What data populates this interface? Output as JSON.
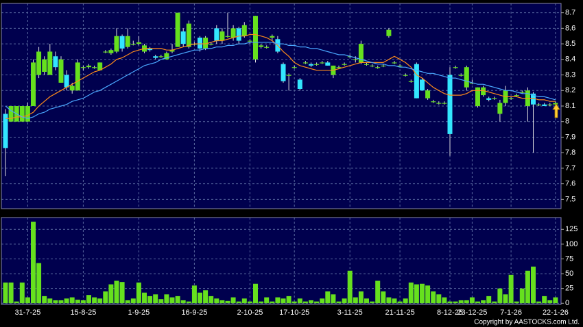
{
  "chart_data": {
    "type": "candlestick",
    "categories": [
      null,
      null,
      null,
      null,
      "31-7-25",
      null,
      null,
      null,
      null,
      null,
      null,
      null,
      null,
      null,
      "15-8-25",
      null,
      null,
      null,
      null,
      null,
      null,
      null,
      null,
      null,
      "1-9-25",
      null,
      null,
      null,
      null,
      null,
      null,
      null,
      null,
      null,
      "16-9-25",
      null,
      null,
      null,
      null,
      null,
      null,
      null,
      null,
      null,
      "2-10-25",
      null,
      null,
      null,
      null,
      null,
      null,
      null,
      "17-10-25",
      null,
      null,
      null,
      null,
      null,
      null,
      null,
      null,
      null,
      "3-11-25",
      null,
      null,
      null,
      null,
      null,
      null,
      null,
      null,
      "21-11-25",
      null,
      null,
      null,
      null,
      null,
      null,
      null,
      null,
      "8-12-25",
      null,
      null,
      null,
      "23-12-25",
      null,
      null,
      null,
      null,
      null,
      null,
      "7-1-26",
      null,
      null,
      null,
      null,
      null,
      null,
      null,
      "22-1-26"
    ],
    "open": [
      8.05,
      8.0,
      8.0,
      8.0,
      8.0,
      8.1,
      8.3,
      8.32,
      8.3,
      8.42,
      8.25,
      8.3,
      8.2,
      8.2,
      8.35,
      8.35,
      8.35,
      8.33,
      8.45,
      8.44,
      8.45,
      8.55,
      8.48,
      8.5,
      8.5,
      8.45,
      8.47,
      8.42,
      8.42,
      8.4,
      8.45,
      8.48,
      8.58,
      8.48,
      8.5,
      8.54,
      8.47,
      8.5,
      8.6,
      8.52,
      8.55,
      8.54,
      8.6,
      8.55,
      8.52,
      8.4,
      8.48,
      8.48,
      8.54,
      8.53,
      8.37,
      8.3,
      8.35,
      8.27,
      8.38,
      8.37,
      8.37,
      8.38,
      8.38,
      8.3,
      8.35,
      8.37,
      8.42,
      8.4,
      8.38,
      8.37,
      8.36,
      8.35,
      8.36,
      8.55,
      8.38,
      8.36,
      8.3,
      8.26,
      8.37,
      8.27,
      8.15,
      8.13,
      8.12,
      8.12,
      8.3,
      8.35,
      8.3,
      8.22,
      8.25,
      8.1,
      8.17,
      8.15,
      8.15,
      8.05,
      8.12,
      8.15,
      8.17,
      8.19,
      8.1,
      8.18,
      8.11,
      8.11,
      8.11,
      8.11
    ],
    "high": [
      8.08,
      8.1,
      8.1,
      8.1,
      8.12,
      8.4,
      8.48,
      8.42,
      8.5,
      8.45,
      8.42,
      8.33,
      8.25,
      8.4,
      8.36,
      8.37,
      8.36,
      8.38,
      8.46,
      8.47,
      8.6,
      8.56,
      8.6,
      8.52,
      8.55,
      8.5,
      8.48,
      8.43,
      8.43,
      8.45,
      8.5,
      8.7,
      8.6,
      8.65,
      8.51,
      8.55,
      8.55,
      8.51,
      8.62,
      8.6,
      8.7,
      8.62,
      8.61,
      8.64,
      8.53,
      8.68,
      8.5,
      8.49,
      8.56,
      8.55,
      8.38,
      8.31,
      8.36,
      8.28,
      8.39,
      8.38,
      8.38,
      8.39,
      8.39,
      8.36,
      8.36,
      8.38,
      8.43,
      8.42,
      8.52,
      8.38,
      8.37,
      8.36,
      8.37,
      8.6,
      8.39,
      8.37,
      8.31,
      8.27,
      8.38,
      8.28,
      8.21,
      8.14,
      8.13,
      8.13,
      8.35,
      8.36,
      8.31,
      8.36,
      8.27,
      8.22,
      8.23,
      8.16,
      8.16,
      8.14,
      8.23,
      8.16,
      8.18,
      8.2,
      8.22,
      8.19,
      8.12,
      8.12,
      8.12,
      8.13
    ],
    "low": [
      7.65,
      8.0,
      8.0,
      8.0,
      8.0,
      8.1,
      8.28,
      8.3,
      8.3,
      8.33,
      8.25,
      8.2,
      8.18,
      8.2,
      8.33,
      8.34,
      8.34,
      8.33,
      8.44,
      8.43,
      8.44,
      8.45,
      8.47,
      8.49,
      8.49,
      8.44,
      8.45,
      8.4,
      8.41,
      8.4,
      8.44,
      8.48,
      8.48,
      8.47,
      8.49,
      8.45,
      8.46,
      8.49,
      8.5,
      8.5,
      8.54,
      8.52,
      8.5,
      8.54,
      8.5,
      8.38,
      8.47,
      8.47,
      8.52,
      8.44,
      8.25,
      8.2,
      8.34,
      8.2,
      8.37,
      8.35,
      8.36,
      8.37,
      8.36,
      8.28,
      8.34,
      8.36,
      8.41,
      8.38,
      8.37,
      8.36,
      8.35,
      8.34,
      8.35,
      8.54,
      8.37,
      8.35,
      8.29,
      8.25,
      8.15,
      8.2,
      8.14,
      8.12,
      8.11,
      8.11,
      7.78,
      8.34,
      8.29,
      8.2,
      8.24,
      8.09,
      8.16,
      8.13,
      8.14,
      8.0,
      8.1,
      8.14,
      8.16,
      8.18,
      8.0,
      7.8,
      8.1,
      8.1,
      8.1,
      8.1
    ],
    "close": [
      7.83,
      8.1,
      8.1,
      8.1,
      8.1,
      8.38,
      8.45,
      8.4,
      8.45,
      8.35,
      8.4,
      8.22,
      8.23,
      8.38,
      8.35,
      8.36,
      8.35,
      8.38,
      8.45,
      8.46,
      8.55,
      8.47,
      8.55,
      8.5,
      8.51,
      8.49,
      8.46,
      8.41,
      8.42,
      8.44,
      8.46,
      8.7,
      8.5,
      8.63,
      8.5,
      8.47,
      8.54,
      8.5,
      8.52,
      8.58,
      8.55,
      8.6,
      8.52,
      8.62,
      8.52,
      8.68,
      8.49,
      8.48,
      8.55,
      8.45,
      8.26,
      8.3,
      8.35,
      8.21,
      8.38,
      8.36,
      8.37,
      8.38,
      8.36,
      8.36,
      8.35,
      8.37,
      8.42,
      8.4,
      8.5,
      8.37,
      8.36,
      8.35,
      8.36,
      8.59,
      8.38,
      8.36,
      8.3,
      8.26,
      8.15,
      8.2,
      8.2,
      8.13,
      8.12,
      8.12,
      7.92,
      8.35,
      8.3,
      8.35,
      8.25,
      8.22,
      8.22,
      8.14,
      8.15,
      8.12,
      8.2,
      8.15,
      8.17,
      8.19,
      8.2,
      8.11,
      8.11,
      8.1,
      8.11,
      8.12
    ],
    "up_color": "#66e01e",
    "down_color": "#33e6ff",
    "series": [
      {
        "color": "#ff8c1a",
        "values": [
          8.02,
          8.02,
          8.03,
          8.03,
          8.04,
          8.06,
          8.1,
          8.13,
          8.16,
          8.18,
          8.2,
          8.22,
          8.24,
          8.26,
          8.28,
          8.3,
          8.32,
          8.33,
          8.35,
          8.37,
          8.4,
          8.41,
          8.43,
          8.45,
          8.46,
          8.47,
          8.47,
          8.47,
          8.47,
          8.46,
          8.46,
          8.47,
          8.48,
          8.49,
          8.5,
          8.5,
          8.5,
          8.51,
          8.52,
          8.52,
          8.53,
          8.54,
          8.55,
          8.55,
          8.56,
          8.56,
          8.55,
          8.54,
          8.52,
          8.49,
          8.45,
          8.42,
          8.38,
          8.36,
          8.35,
          8.34,
          8.33,
          8.33,
          8.33,
          8.33,
          8.34,
          8.35,
          8.36,
          8.37,
          8.38,
          8.38,
          8.38,
          8.38,
          8.38,
          8.4,
          8.42,
          8.4,
          8.38,
          8.35,
          8.3,
          8.28,
          8.25,
          8.22,
          8.2,
          8.18,
          8.17,
          8.17,
          8.17,
          8.18,
          8.2,
          8.2,
          8.2,
          8.19,
          8.18,
          8.17,
          8.16,
          8.16,
          8.16,
          8.15,
          8.15,
          8.15,
          8.14,
          8.14,
          8.13,
          8.13
        ]
      },
      {
        "color": "#4aa8ff",
        "values": [
          8.1,
          8.07,
          8.05,
          8.03,
          8.02,
          8.03,
          8.05,
          8.06,
          8.08,
          8.09,
          8.1,
          8.11,
          8.13,
          8.14,
          8.15,
          8.17,
          8.19,
          8.2,
          8.22,
          8.24,
          8.26,
          8.28,
          8.3,
          8.32,
          8.34,
          8.36,
          8.37,
          8.38,
          8.4,
          8.41,
          8.42,
          8.43,
          8.44,
          8.45,
          8.46,
          8.46,
          8.47,
          8.47,
          8.48,
          8.48,
          8.49,
          8.49,
          8.5,
          8.5,
          8.51,
          8.51,
          8.51,
          8.51,
          8.51,
          8.5,
          8.5,
          8.49,
          8.49,
          8.48,
          8.48,
          8.47,
          8.47,
          8.46,
          8.45,
          8.44,
          8.43,
          8.43,
          8.42,
          8.41,
          8.4,
          8.39,
          8.38,
          8.37,
          8.37,
          8.36,
          8.36,
          8.35,
          8.35,
          8.34,
          8.33,
          8.32,
          8.31,
          8.31,
          8.3,
          8.29,
          8.28,
          8.28,
          8.27,
          8.26,
          8.25,
          8.24,
          8.24,
          8.23,
          8.22,
          8.21,
          8.2,
          8.2,
          8.19,
          8.18,
          8.18,
          8.17,
          8.16,
          8.16,
          8.15,
          8.14
        ]
      }
    ],
    "ylim": [
      7.44,
      8.76
    ],
    "yticks": [
      7.5,
      7.6,
      7.7,
      7.8,
      7.9,
      8,
      8.1,
      8.2,
      8.3,
      8.4,
      8.5,
      8.6,
      8.7
    ],
    "grid": true,
    "volume": {
      "color": "#66e01e",
      "values": [
        35,
        35,
        3,
        35,
        10,
        138,
        68,
        12,
        8,
        5,
        5,
        8,
        10,
        6,
        5,
        14,
        10,
        8,
        20,
        32,
        38,
        36,
        5,
        8,
        35,
        18,
        12,
        15,
        7,
        15,
        10,
        12,
        5,
        3,
        30,
        18,
        22,
        12,
        8,
        5,
        4,
        10,
        3,
        8,
        3,
        33,
        3,
        10,
        3,
        10,
        8,
        12,
        3,
        8,
        3,
        5,
        3,
        8,
        20,
        15,
        3,
        8,
        55,
        10,
        20,
        8,
        3,
        38,
        20,
        10,
        8,
        3,
        8,
        35,
        32,
        33,
        30,
        20,
        15,
        10,
        3,
        3,
        5,
        5,
        10,
        3,
        5,
        12,
        3,
        25,
        15,
        48,
        3,
        25,
        55,
        62,
        3,
        12,
        5,
        10
      ],
      "ylim": [
        -2,
        145
      ],
      "yticks": [
        0,
        25,
        50,
        75,
        100,
        125
      ]
    },
    "copyright": "Copyright by AASTOCKS.com Ltd."
  }
}
